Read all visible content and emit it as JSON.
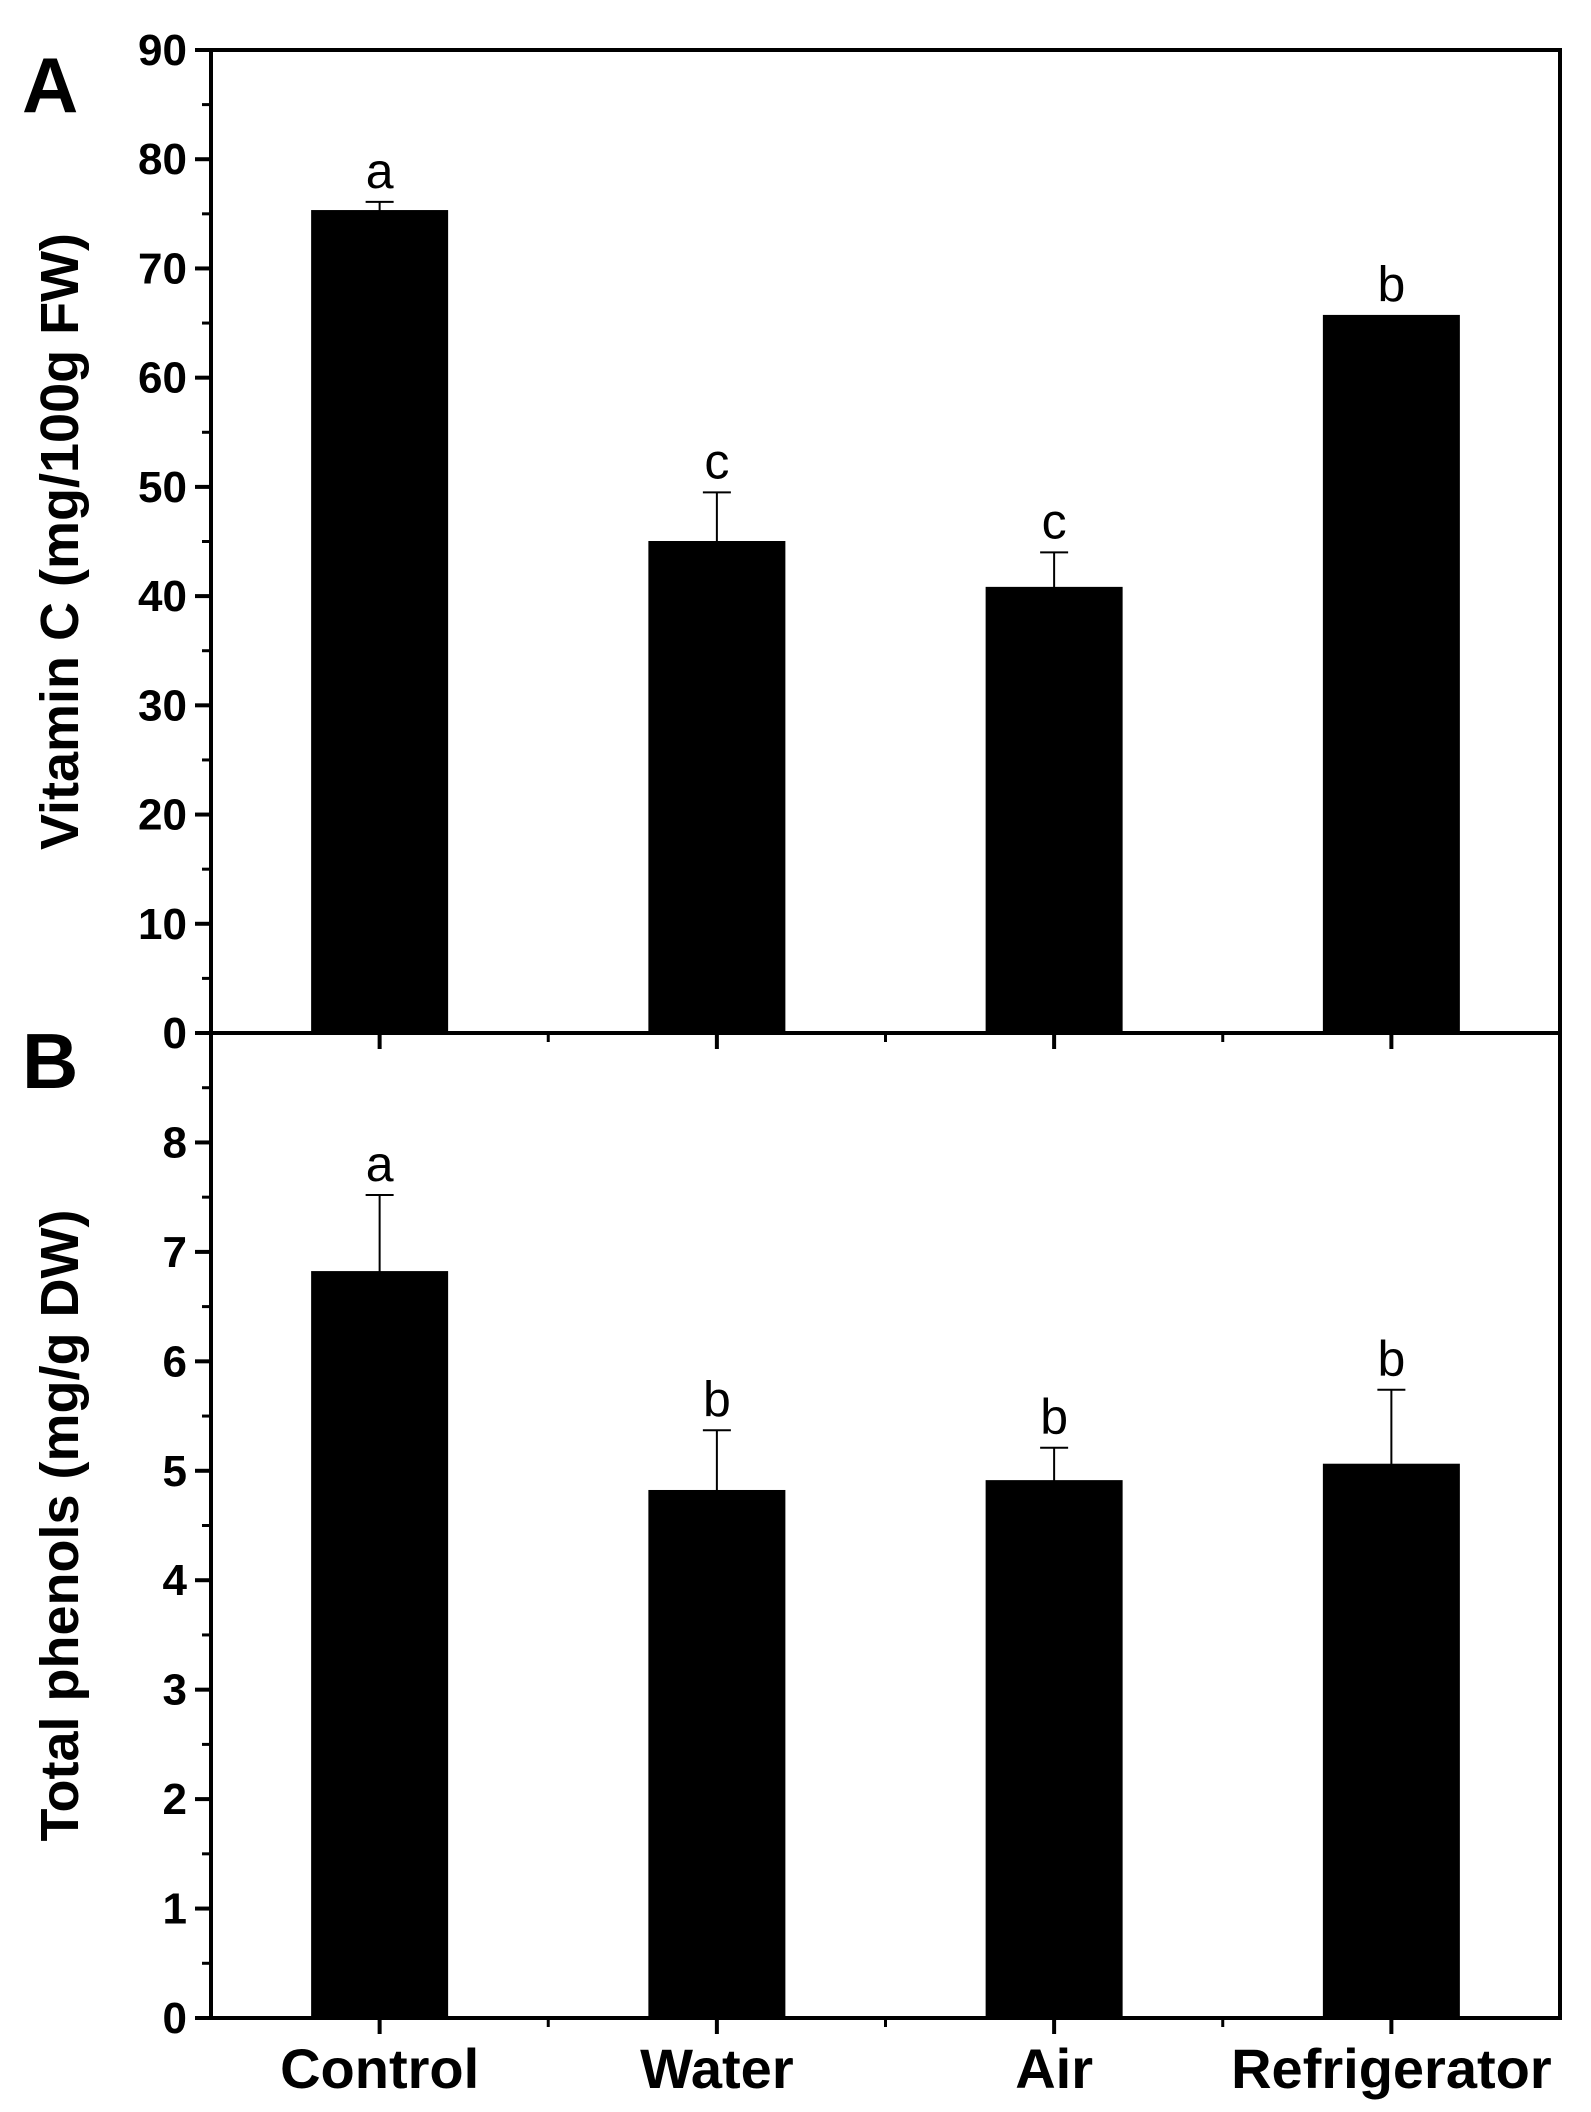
{
  "chart_data": [
    {
      "type": "bar",
      "panel": "A",
      "categories": [
        "Control",
        "Water",
        "Air",
        "Refrigerator"
      ],
      "values": [
        75.3,
        45.0,
        40.8,
        65.7
      ],
      "errors": [
        0.8,
        4.5,
        3.2,
        0.0
      ],
      "significance": [
        "a",
        "c",
        "c",
        "b"
      ],
      "ylabel": "Vitamin C (mg/100g FW)",
      "xlabel": "",
      "ylim": [
        0,
        90
      ],
      "yticks": [
        0,
        10,
        20,
        30,
        40,
        50,
        60,
        70,
        80,
        90
      ],
      "bar_color": "#000000"
    },
    {
      "type": "bar",
      "panel": "B",
      "categories": [
        "Control",
        "Water",
        "Air",
        "Refrigerator"
      ],
      "values": [
        6.82,
        4.82,
        4.91,
        5.06
      ],
      "errors": [
        0.7,
        0.55,
        0.3,
        0.68
      ],
      "significance": [
        "a",
        "b",
        "b",
        "b"
      ],
      "ylabel": "Total phenols (mg/g DW)",
      "xlabel": "",
      "ylim": [
        0,
        9
      ],
      "yticks": [
        0,
        1,
        2,
        3,
        4,
        5,
        6,
        7,
        8
      ],
      "bar_color": "#000000"
    }
  ]
}
